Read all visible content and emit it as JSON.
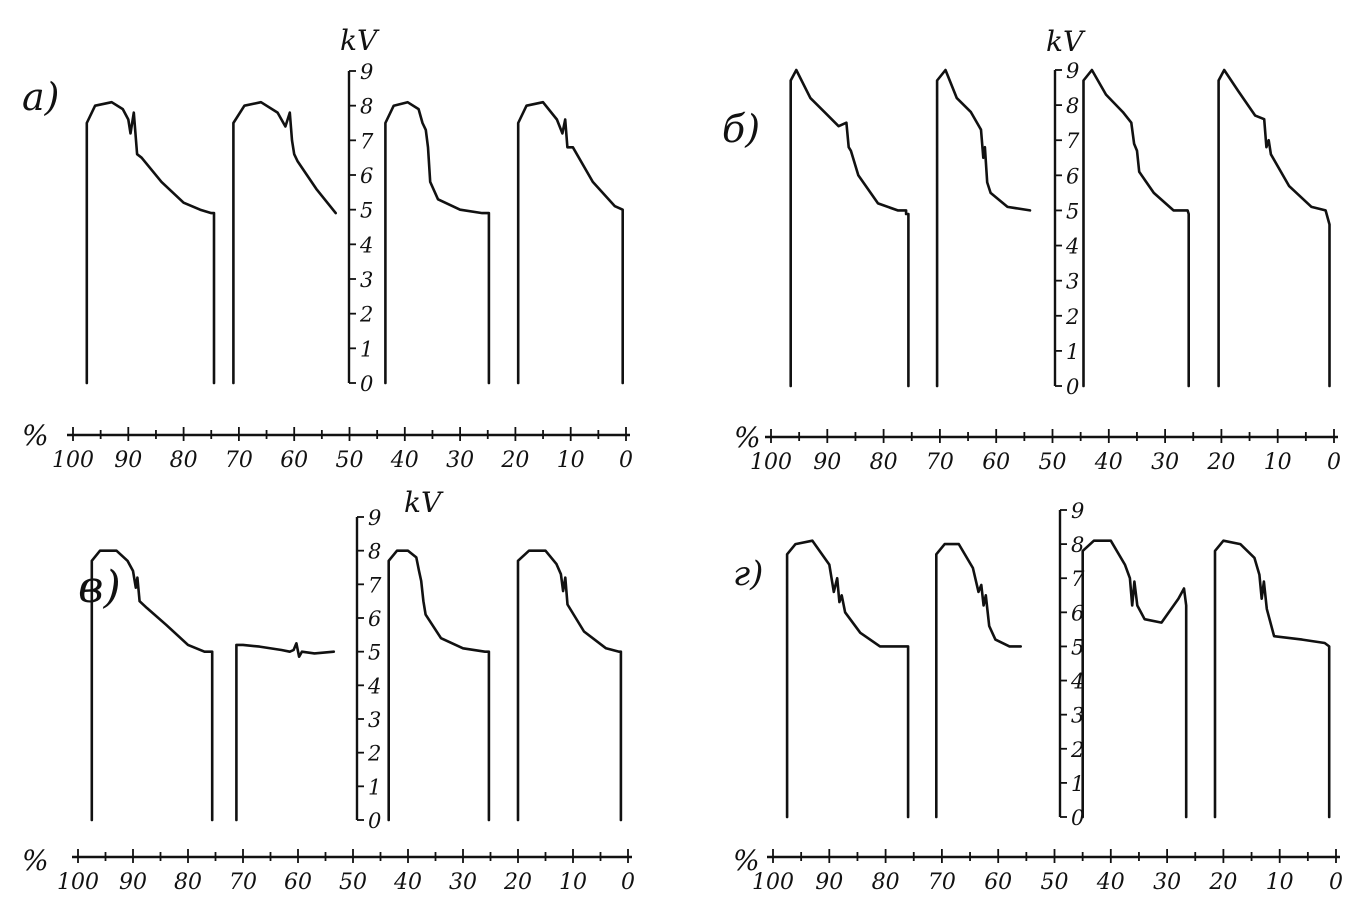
{
  "chart_data": [
    {
      "type": "line",
      "panel_label": "a)",
      "y_unit_label": "kV",
      "x_unit_label": "%",
      "x_ticks": [
        "100",
        "90",
        "80",
        "70",
        "60",
        "50",
        "40",
        "30",
        "20",
        "10",
        "0"
      ],
      "y_ticks": [
        "0",
        "1",
        "2",
        "3",
        "4",
        "5",
        "6",
        "7",
        "8",
        "9"
      ],
      "xlim": [
        100,
        0
      ],
      "ylim": [
        0,
        9
      ],
      "series": [
        {
          "x": [
            97.5,
            97.5,
            96,
            93,
            91,
            90,
            89.6,
            89,
            88.4,
            87.6,
            84,
            80,
            77,
            75,
            74.5,
            74.5
          ],
          "y": [
            0,
            7.5,
            8,
            8.1,
            7.9,
            7.6,
            7.2,
            7.8,
            6.6,
            6.5,
            5.8,
            5.2,
            5,
            4.9,
            4.9,
            0
          ]
        },
        {
          "x": [
            71,
            71,
            69,
            66,
            63,
            61.6,
            60.8,
            60.4,
            60,
            59.4,
            56,
            52.5
          ],
          "y": [
            0,
            7.5,
            8,
            8.1,
            7.8,
            7.4,
            7.8,
            7,
            6.6,
            6.4,
            5.6,
            4.9
          ]
        },
        {
          "x": [
            43.5,
            43.5,
            42,
            39.5,
            37.5,
            36.8,
            36.2,
            35.8,
            35.4,
            34,
            30,
            26,
            24.8,
            24.8
          ],
          "y": [
            0,
            7.5,
            8,
            8.1,
            7.9,
            7.5,
            7.3,
            6.8,
            5.8,
            5.3,
            5,
            4.9,
            4.9,
            0
          ]
        },
        {
          "x": [
            19.5,
            19.5,
            18,
            15,
            12.5,
            11.5,
            11,
            10.6,
            9.6,
            6,
            2,
            0.6,
            0.6
          ],
          "y": [
            0,
            7.5,
            8,
            8.1,
            7.6,
            7.2,
            7.6,
            6.8,
            6.8,
            5.8,
            5.1,
            5,
            0
          ]
        }
      ]
    },
    {
      "type": "line",
      "panel_label": "б)",
      "y_unit_label": "kV",
      "x_unit_label": "%",
      "x_ticks": [
        "100",
        "90",
        "80",
        "70",
        "60",
        "50",
        "40",
        "30",
        "20",
        "10",
        "0"
      ],
      "y_ticks": [
        "0",
        "1",
        "2",
        "3",
        "4",
        "5",
        "6",
        "7",
        "8",
        "9"
      ],
      "xlim": [
        100,
        0
      ],
      "ylim": [
        0,
        9
      ],
      "series": [
        {
          "x": [
            96.5,
            96.5,
            95.5,
            93,
            90.5,
            88,
            86.6,
            86.2,
            85.8,
            84.5,
            81,
            77.5,
            76,
            76,
            75.6,
            75.6
          ],
          "y": [
            0,
            8.7,
            9,
            8.2,
            7.8,
            7.4,
            7.5,
            6.8,
            6.7,
            6,
            5.2,
            5,
            5,
            4.9,
            4.9,
            0
          ]
        },
        {
          "x": [
            70.5,
            70.5,
            69,
            67,
            64.5,
            62.7,
            62.3,
            62,
            61.6,
            61,
            58,
            54
          ],
          "y": [
            0,
            8.7,
            9,
            8.2,
            7.8,
            7.3,
            6.5,
            6.8,
            5.8,
            5.5,
            5.1,
            5
          ]
        },
        {
          "x": [
            44.5,
            44.5,
            43,
            40.5,
            37.5,
            36,
            35.5,
            35,
            34.6,
            32,
            28.5,
            26,
            25.8,
            25.8
          ],
          "y": [
            0,
            8.7,
            9,
            8.3,
            7.8,
            7.5,
            6.9,
            6.7,
            6.1,
            5.5,
            5,
            5,
            4.9,
            0
          ]
        },
        {
          "x": [
            20.5,
            20.5,
            19.5,
            17,
            14,
            12.4,
            12,
            11.6,
            11.2,
            8,
            4,
            1.5,
            0.8,
            0.8
          ],
          "y": [
            0,
            8.7,
            9,
            8.4,
            7.7,
            7.6,
            6.8,
            7,
            6.6,
            5.7,
            5.1,
            5,
            4.6,
            0
          ]
        }
      ]
    },
    {
      "type": "line",
      "panel_label": "в)",
      "y_unit_label": "kV",
      "x_unit_label": "%",
      "x_ticks": [
        "100",
        "90",
        "80",
        "70",
        "60",
        "50",
        "40",
        "30",
        "20",
        "10",
        "0"
      ],
      "y_ticks": [
        "0",
        "1",
        "2",
        "3",
        "4",
        "5",
        "6",
        "7",
        "8",
        "9"
      ],
      "xlim": [
        100,
        0
      ],
      "ylim": [
        0,
        9
      ],
      "series": [
        {
          "x": [
            97.5,
            97.5,
            96,
            93,
            91,
            90,
            89.5,
            89.2,
            88.8,
            87.5,
            84,
            80,
            77,
            75.6,
            75.6
          ],
          "y": [
            0,
            7.7,
            8,
            8,
            7.7,
            7.4,
            6.9,
            7.2,
            6.5,
            6.3,
            5.8,
            5.2,
            5,
            5,
            0
          ]
        },
        {
          "x": [
            71.2,
            71.2,
            70,
            67,
            63,
            61.5,
            60.8,
            60.3,
            59.8,
            59.3,
            57,
            53.5
          ],
          "y": [
            0,
            5.2,
            5.2,
            5.15,
            5.05,
            5,
            5.05,
            5.25,
            4.85,
            5,
            4.95,
            5
          ]
        },
        {
          "x": [
            43.5,
            43.5,
            42,
            40,
            38.5,
            38,
            37.6,
            37.2,
            36.8,
            34,
            30,
            26,
            25.3,
            25.3
          ],
          "y": [
            0,
            7.7,
            8,
            8,
            7.8,
            7.4,
            7.1,
            6.5,
            6.1,
            5.4,
            5.1,
            5,
            5,
            0
          ]
        },
        {
          "x": [
            20,
            20,
            18,
            15,
            13,
            12.2,
            11.8,
            11.4,
            11,
            8,
            4,
            1.6,
            1.3,
            1.3
          ],
          "y": [
            0,
            7.7,
            8,
            8,
            7.6,
            7.3,
            6.8,
            7.2,
            6.4,
            5.6,
            5.1,
            5,
            5,
            0
          ]
        }
      ]
    },
    {
      "type": "line",
      "panel_label": "г)",
      "y_unit_label": "",
      "x_unit_label": "%",
      "x_ticks": [
        "100",
        "90",
        "80",
        "70",
        "60",
        "50",
        "40",
        "30",
        "20",
        "10",
        "0"
      ],
      "y_ticks": [
        "0",
        "1",
        "2",
        "3",
        "4",
        "5",
        "6",
        "7",
        "8",
        "9"
      ],
      "xlim": [
        100,
        0
      ],
      "ylim": [
        0,
        9
      ],
      "series": [
        {
          "x": [
            97.5,
            97.5,
            96,
            93,
            90,
            89.2,
            88.6,
            88.2,
            87.8,
            87.2,
            84.5,
            81,
            77.5,
            76,
            76
          ],
          "y": [
            0,
            7.7,
            8,
            8.1,
            7.4,
            6.6,
            7,
            6.3,
            6.5,
            6,
            5.4,
            5,
            5,
            5,
            0
          ]
        },
        {
          "x": [
            71,
            71,
            69.5,
            67,
            64.5,
            63.5,
            63,
            62.6,
            62.2,
            61.6,
            60.5,
            58,
            56
          ],
          "y": [
            0,
            7.7,
            8,
            8,
            7.3,
            6.6,
            6.8,
            6.2,
            6.5,
            5.6,
            5.2,
            5,
            5
          ]
        },
        {
          "x": [
            45,
            45,
            43,
            40,
            37.5,
            36.6,
            36.2,
            35.8,
            35.3,
            34,
            31,
            28,
            27,
            26.6,
            26.6
          ],
          "y": [
            0,
            7.8,
            8.1,
            8.1,
            7.4,
            7,
            6.2,
            6.9,
            6.2,
            5.8,
            5.7,
            6.4,
            6.7,
            6.2,
            0
          ]
        },
        {
          "x": [
            21.5,
            21.5,
            20,
            17,
            14.5,
            13.6,
            13.2,
            12.8,
            12.3,
            11,
            6,
            2,
            1.2,
            1.2
          ],
          "y": [
            0,
            7.8,
            8.1,
            8,
            7.6,
            7.1,
            6.4,
            6.9,
            6.1,
            5.3,
            5.2,
            5.1,
            5,
            0
          ]
        }
      ]
    }
  ]
}
